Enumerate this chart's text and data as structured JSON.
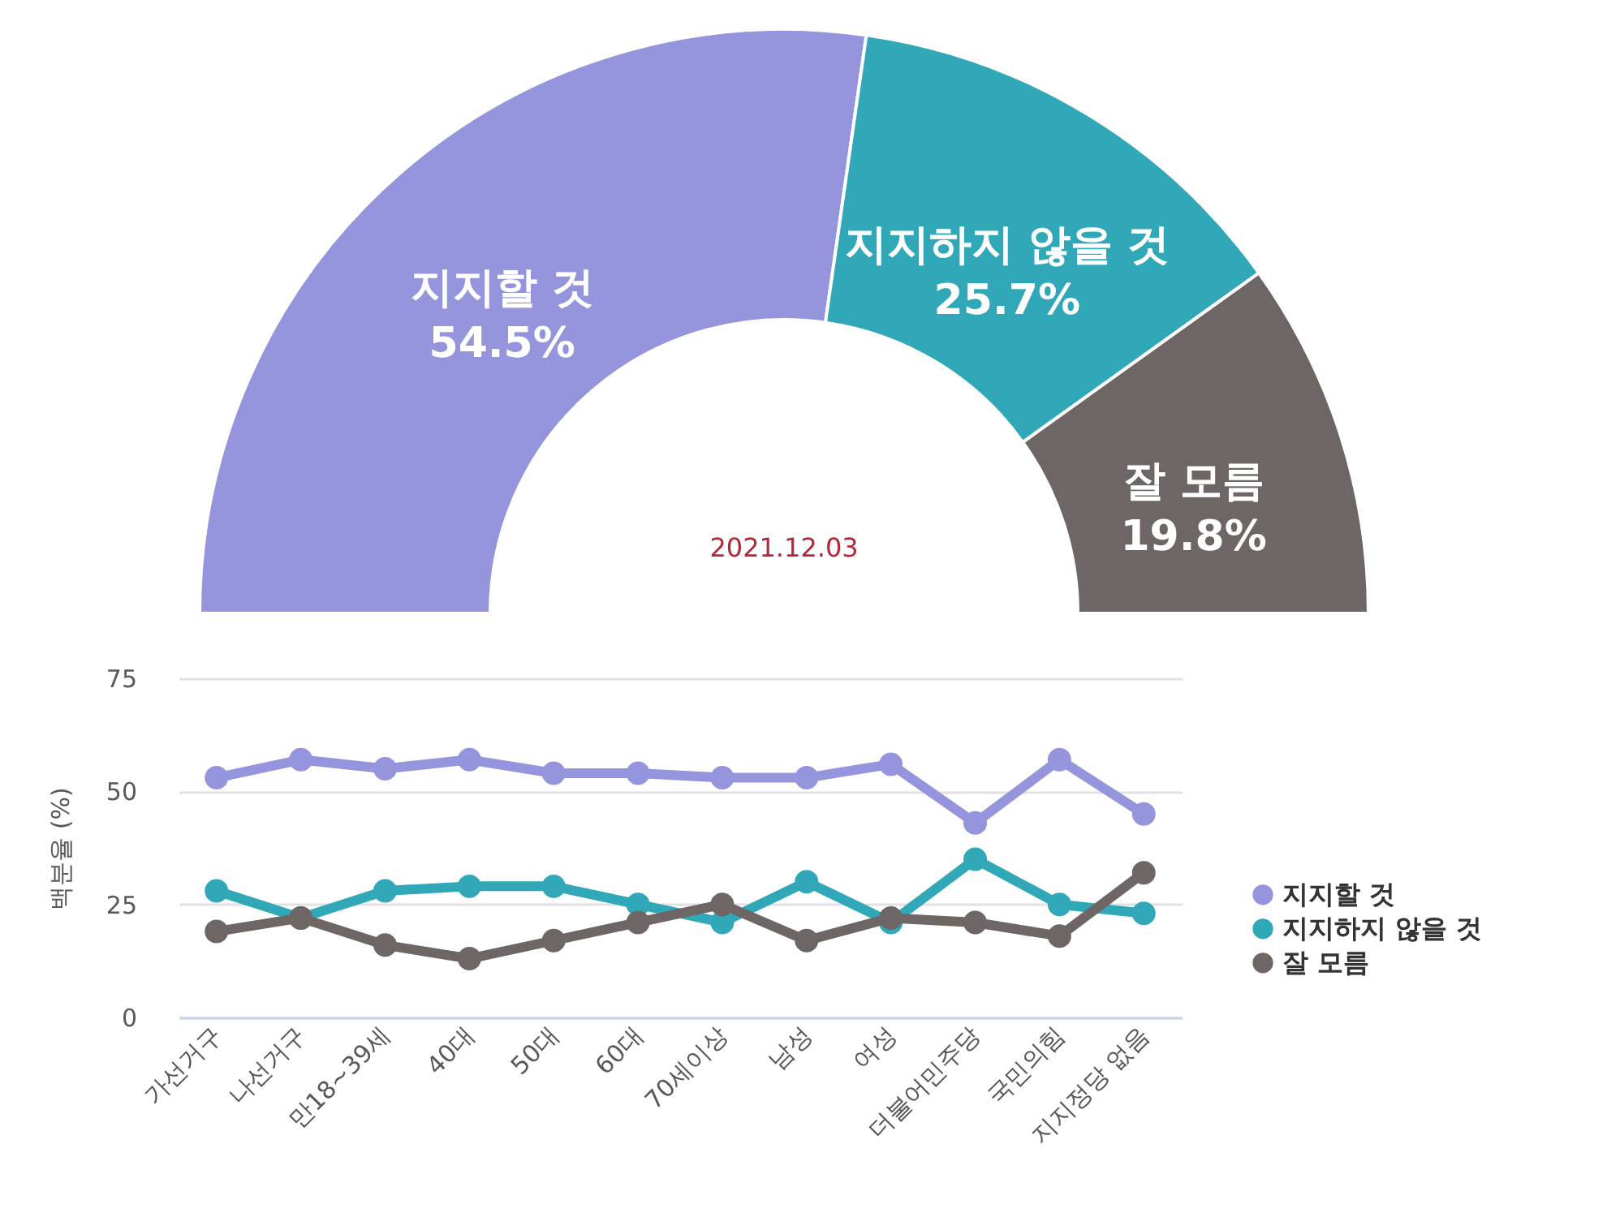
{
  "chart_data": [
    {
      "type": "donut",
      "categories": [
        "지지할 것",
        "지지하지 않을 것",
        "잘 모름"
      ],
      "values": [
        54.5,
        25.7,
        19.8
      ],
      "colors": [
        "#9595dd",
        "#31a8b8",
        "#6e6664"
      ],
      "value_labels": [
        "54.5%",
        "25.7%",
        "19.8%"
      ],
      "annotations": [
        "2021.12.03"
      ]
    },
    {
      "type": "line",
      "categories": [
        "가선거구",
        "나선거구",
        "만18~39세",
        "40대",
        "50대",
        "60대",
        "70세이상",
        "남성",
        "여성",
        "더불어민주당",
        "국민의힘",
        "지지정당 없음"
      ],
      "ylabel": "백분율 (%)",
      "ylim": [
        0,
        75
      ],
      "yticks": [
        0,
        25,
        50,
        75
      ],
      "grid": "y",
      "legend": "right",
      "marker": "circle",
      "line_style": "solid",
      "series": [
        {
          "name": "지지할 것",
          "color": "#9595dd",
          "values": [
            53,
            57,
            55,
            57,
            54,
            54,
            53,
            53,
            56,
            43,
            57,
            45
          ]
        },
        {
          "name": "지지하지 않을 것",
          "color": "#31a8b8",
          "values": [
            28,
            22,
            28,
            29,
            29,
            25,
            21,
            30,
            21,
            35,
            25,
            23
          ]
        },
        {
          "name": "잘 모름",
          "color": "#6e6664",
          "values": [
            19,
            22,
            16,
            13,
            17,
            21,
            25,
            17,
            22,
            21,
            18,
            32
          ]
        }
      ]
    }
  ]
}
